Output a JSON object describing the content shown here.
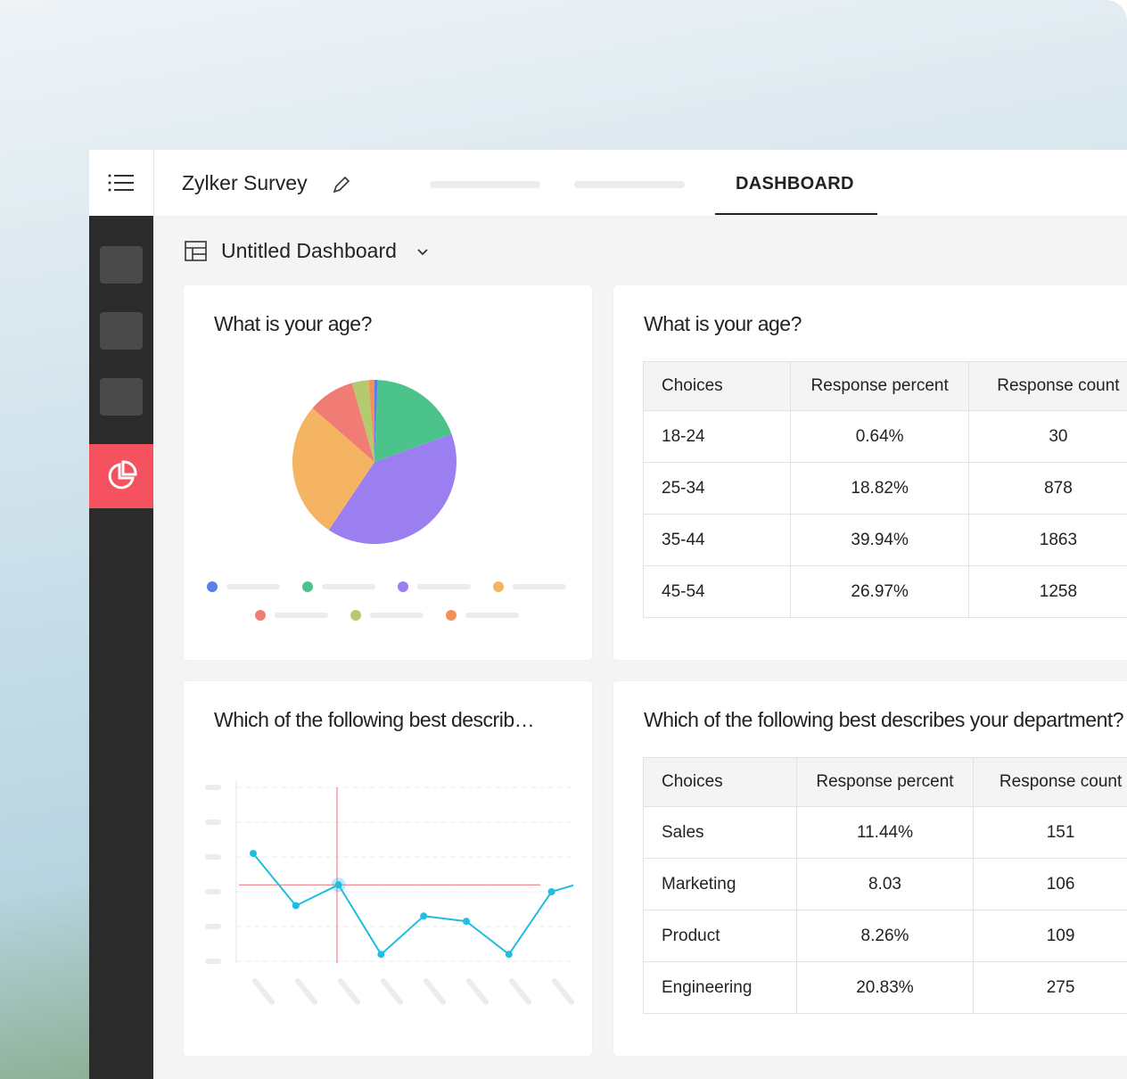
{
  "app": {
    "title": "Zylker Survey",
    "active_tab": "DASHBOARD"
  },
  "dashboard": {
    "name": "Untitled Dashboard"
  },
  "pie_card": {
    "title": "What is your age?",
    "chart_data": {
      "type": "pie",
      "values": [
        0.64,
        18.82,
        39.94,
        26.97,
        9.2,
        3.3,
        1.13
      ],
      "colors": [
        "#5b7fe8",
        "#4cc38a",
        "#9b7ff0",
        "#f5b461",
        "#f07c74",
        "#b5c96e",
        "#f29157"
      ]
    }
  },
  "line_card": {
    "title": "Which of the following best describes your department?",
    "chart_data": {
      "type": "line",
      "color": "#1fbde0",
      "values": [
        3.1,
        1.6,
        2.2,
        0.2,
        1.3,
        1.15,
        0.2,
        2.0,
        2.36
      ],
      "ylim": [
        0,
        5
      ],
      "yticks": [
        0,
        1,
        2,
        3,
        4,
        5
      ],
      "grid": true
    }
  },
  "tables": [
    {
      "title": "What is your age?",
      "columns": [
        "Choices",
        "Response percent",
        "Response count"
      ],
      "rows": [
        [
          "18-24",
          "0.64%",
          "30"
        ],
        [
          "25-34",
          "18.82%",
          "878"
        ],
        [
          "35-44",
          "39.94%",
          "1863"
        ],
        [
          "45-54",
          "26.97%",
          "1258"
        ]
      ]
    },
    {
      "title": "Which of the following best describes your department?",
      "columns": [
        "Choices",
        "Response percent",
        "Response count"
      ],
      "rows": [
        [
          "Sales",
          "11.44%",
          "151"
        ],
        [
          "Marketing",
          "8.03",
          "106"
        ],
        [
          "Product",
          "8.26%",
          "109"
        ],
        [
          "Engineering",
          "20.83%",
          "275"
        ]
      ]
    }
  ]
}
